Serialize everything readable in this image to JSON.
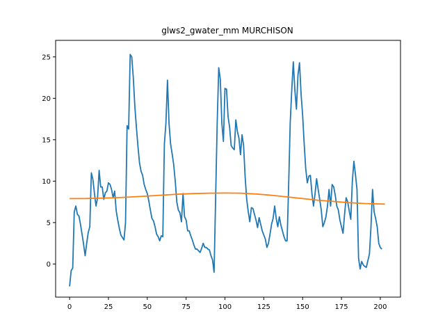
{
  "chart_data": {
    "type": "line",
    "title": "glws2_gwater_mm MURCHISON",
    "xlabel": "",
    "ylabel": "",
    "xlim": [
      -9,
      213
    ],
    "ylim": [
      -4,
      27
    ],
    "xticks": [
      0,
      25,
      50,
      75,
      100,
      125,
      150,
      175,
      200
    ],
    "yticks": [
      0,
      5,
      10,
      15,
      20,
      25
    ],
    "grid": false,
    "series": [
      {
        "name": "",
        "color": "#1f77b4",
        "points": [
          [
            0,
            -2.7
          ],
          [
            1,
            -0.8
          ],
          [
            2,
            -0.5
          ],
          [
            3,
            6.3
          ],
          [
            4,
            7.0
          ],
          [
            5,
            6.0
          ],
          [
            6,
            5.8
          ],
          [
            7,
            4.8
          ],
          [
            8,
            3.6
          ],
          [
            9,
            2.4
          ],
          [
            10,
            1.0
          ],
          [
            11,
            2.5
          ],
          [
            12,
            3.8
          ],
          [
            13,
            4.5
          ],
          [
            14,
            11.0
          ],
          [
            15,
            10.2
          ],
          [
            16,
            8.5
          ],
          [
            17,
            7.0
          ],
          [
            18,
            8.0
          ],
          [
            19,
            11.3
          ],
          [
            20,
            9.3
          ],
          [
            21,
            9.3
          ],
          [
            22,
            7.8
          ],
          [
            23,
            8.6
          ],
          [
            24,
            8.8
          ],
          [
            25,
            9.8
          ],
          [
            26,
            9.6
          ],
          [
            27,
            9.0
          ],
          [
            28,
            8.0
          ],
          [
            29,
            8.8
          ],
          [
            30,
            6.4
          ],
          [
            31,
            5.3
          ],
          [
            32,
            4.3
          ],
          [
            33,
            3.5
          ],
          [
            34,
            3.2
          ],
          [
            35,
            2.9
          ],
          [
            36,
            5.0
          ],
          [
            37,
            16.7
          ],
          [
            38,
            16.3
          ],
          [
            39,
            25.3
          ],
          [
            40,
            25.0
          ],
          [
            41,
            22.5
          ],
          [
            42,
            19.0
          ],
          [
            43,
            16.5
          ],
          [
            44,
            14.2
          ],
          [
            45,
            12.2
          ],
          [
            46,
            11.2
          ],
          [
            47,
            10.7
          ],
          [
            48,
            9.6
          ],
          [
            49,
            9.0
          ],
          [
            50,
            8.5
          ],
          [
            51,
            7.6
          ],
          [
            52,
            6.5
          ],
          [
            53,
            5.5
          ],
          [
            54,
            5.2
          ],
          [
            55,
            4.5
          ],
          [
            56,
            3.6
          ],
          [
            57,
            3.3
          ],
          [
            58,
            2.8
          ],
          [
            59,
            3.4
          ],
          [
            60,
            3.3
          ],
          [
            61,
            14.5
          ],
          [
            62,
            17.0
          ],
          [
            63,
            22.2
          ],
          [
            64,
            17.0
          ],
          [
            65,
            14.5
          ],
          [
            66,
            13.3
          ],
          [
            67,
            12.0
          ],
          [
            68,
            10.0
          ],
          [
            69,
            7.5
          ],
          [
            70,
            6.5
          ],
          [
            71,
            6.2
          ],
          [
            72,
            5.1
          ],
          [
            73,
            8.5
          ],
          [
            74,
            5.7
          ],
          [
            75,
            5.3
          ],
          [
            76,
            4.0
          ],
          [
            77,
            4.0
          ],
          [
            78,
            3.4
          ],
          [
            79,
            2.9
          ],
          [
            80,
            2.3
          ],
          [
            81,
            1.8
          ],
          [
            82,
            1.8
          ],
          [
            83,
            1.6
          ],
          [
            84,
            1.4
          ],
          [
            85,
            1.9
          ],
          [
            86,
            2.5
          ],
          [
            87,
            2.0
          ],
          [
            88,
            2.0
          ],
          [
            89,
            1.8
          ],
          [
            90,
            1.7
          ],
          [
            91,
            1.0
          ],
          [
            92,
            0.5
          ],
          [
            93,
            -1.0
          ],
          [
            94,
            8.0
          ],
          [
            95,
            17.0
          ],
          [
            96,
            23.7
          ],
          [
            97,
            22.3
          ],
          [
            98,
            17.0
          ],
          [
            99,
            14.8
          ],
          [
            100,
            21.2
          ],
          [
            101,
            21.1
          ],
          [
            102,
            17.8
          ],
          [
            103,
            16.5
          ],
          [
            104,
            14.3
          ],
          [
            105,
            14.0
          ],
          [
            106,
            13.8
          ],
          [
            107,
            17.4
          ],
          [
            108,
            16.0
          ],
          [
            109,
            15.2
          ],
          [
            110,
            13.2
          ],
          [
            111,
            15.6
          ],
          [
            112,
            14.3
          ],
          [
            113,
            10.5
          ],
          [
            114,
            7.8
          ],
          [
            115,
            6.3
          ],
          [
            116,
            5.1
          ],
          [
            117,
            6.8
          ],
          [
            118,
            6.7
          ],
          [
            119,
            6.0
          ],
          [
            120,
            5.3
          ],
          [
            121,
            4.4
          ],
          [
            122,
            5.6
          ],
          [
            123,
            4.8
          ],
          [
            124,
            4.0
          ],
          [
            125,
            3.5
          ],
          [
            126,
            3.0
          ],
          [
            127,
            2.0
          ],
          [
            128,
            2.5
          ],
          [
            129,
            3.6
          ],
          [
            130,
            4.8
          ],
          [
            131,
            5.5
          ],
          [
            132,
            7.0
          ],
          [
            133,
            5.5
          ],
          [
            134,
            4.5
          ],
          [
            135,
            5.7
          ],
          [
            136,
            4.7
          ],
          [
            137,
            4.0
          ],
          [
            138,
            3.3
          ],
          [
            139,
            2.8
          ],
          [
            140,
            2.8
          ],
          [
            141,
            9.5
          ],
          [
            142,
            17.0
          ],
          [
            143,
            21.0
          ],
          [
            144,
            24.4
          ],
          [
            145,
            21.0
          ],
          [
            146,
            18.7
          ],
          [
            147,
            22.8
          ],
          [
            148,
            24.3
          ],
          [
            149,
            20.5
          ],
          [
            150,
            18.0
          ],
          [
            151,
            14.5
          ],
          [
            152,
            11.5
          ],
          [
            153,
            9.8
          ],
          [
            154,
            10.6
          ],
          [
            155,
            10.7
          ],
          [
            156,
            8.5
          ],
          [
            157,
            7.0
          ],
          [
            158,
            8.5
          ],
          [
            159,
            10.3
          ],
          [
            160,
            9.0
          ],
          [
            161,
            7.8
          ],
          [
            162,
            6.5
          ],
          [
            163,
            4.5
          ],
          [
            164,
            5.0
          ],
          [
            165,
            5.7
          ],
          [
            166,
            7.0
          ],
          [
            167,
            9.0
          ],
          [
            168,
            7.0
          ],
          [
            169,
            9.6
          ],
          [
            170,
            9.3
          ],
          [
            171,
            8.3
          ],
          [
            172,
            7.0
          ],
          [
            173,
            6.5
          ],
          [
            174,
            5.3
          ],
          [
            175,
            4.5
          ],
          [
            176,
            3.7
          ],
          [
            177,
            6.0
          ],
          [
            178,
            8.0
          ],
          [
            179,
            7.5
          ],
          [
            180,
            6.4
          ],
          [
            181,
            5.4
          ],
          [
            182,
            10.0
          ],
          [
            183,
            12.4
          ],
          [
            184,
            10.8
          ],
          [
            185,
            9.0
          ],
          [
            186,
            0.7
          ],
          [
            187,
            -0.6
          ],
          [
            188,
            0.3
          ],
          [
            189,
            -0.1
          ],
          [
            190,
            -0.3
          ],
          [
            191,
            -0.4
          ],
          [
            192,
            0.4
          ],
          [
            193,
            1.2
          ],
          [
            194,
            4.5
          ],
          [
            195,
            9.0
          ],
          [
            196,
            6.3
          ],
          [
            197,
            5.5
          ],
          [
            198,
            4.5
          ],
          [
            199,
            2.5
          ],
          [
            200,
            2.0
          ],
          [
            201,
            1.8
          ]
        ]
      },
      {
        "name": "",
        "color": "#ff7f0e",
        "points": [
          [
            0,
            7.9
          ],
          [
            10,
            7.9
          ],
          [
            20,
            7.95
          ],
          [
            30,
            8.0
          ],
          [
            40,
            8.1
          ],
          [
            50,
            8.2
          ],
          [
            60,
            8.32
          ],
          [
            70,
            8.43
          ],
          [
            80,
            8.5
          ],
          [
            90,
            8.55
          ],
          [
            100,
            8.57
          ],
          [
            110,
            8.55
          ],
          [
            120,
            8.45
          ],
          [
            130,
            8.3
          ],
          [
            140,
            8.1
          ],
          [
            150,
            7.9
          ],
          [
            160,
            7.7
          ],
          [
            170,
            7.55
          ],
          [
            180,
            7.4
          ],
          [
            190,
            7.3
          ],
          [
            200,
            7.25
          ],
          [
            203,
            7.23
          ]
        ]
      }
    ]
  }
}
